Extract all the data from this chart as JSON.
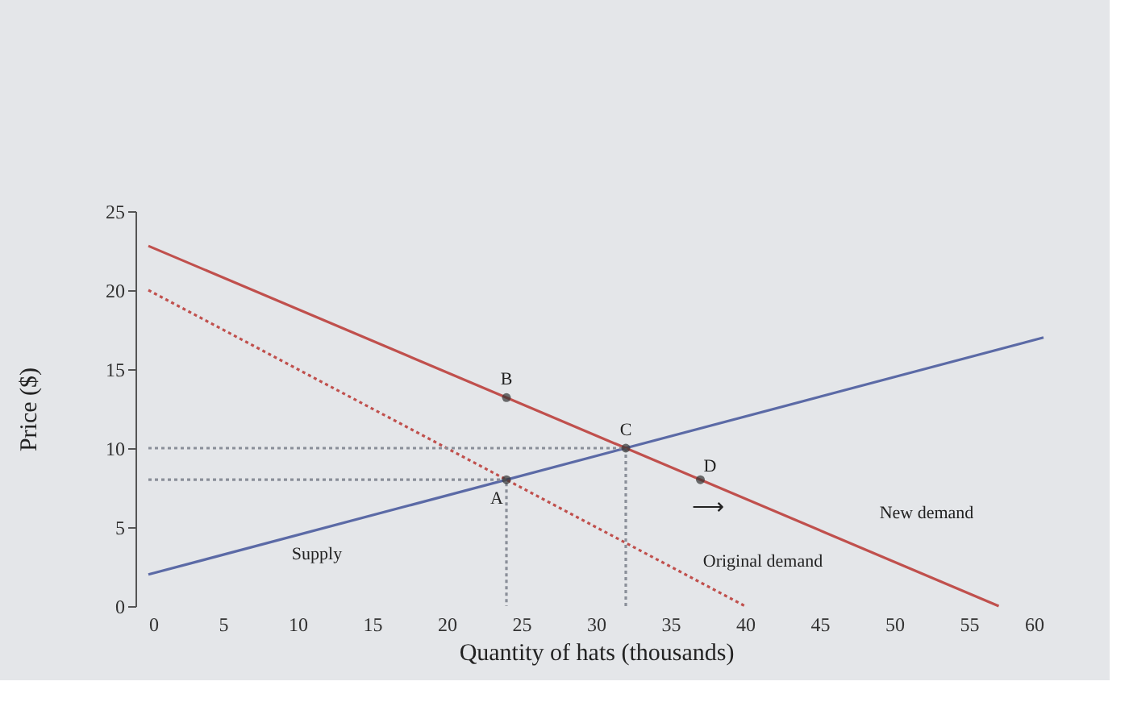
{
  "chart_data": {
    "type": "line",
    "xlabel": "Quantity of hats (thousands)",
    "ylabel": "Price ($)",
    "xlim": [
      0,
      60
    ],
    "xticks": [
      0,
      5,
      10,
      15,
      20,
      25,
      30,
      35,
      40,
      45,
      50,
      55,
      60
    ],
    "ylim": [
      0,
      25
    ],
    "yticks": [
      0,
      5,
      10,
      15,
      20,
      25
    ],
    "grid": false,
    "series": [
      {
        "color": "#5b6aa6",
        "x": [
          0,
          60
        ],
        "values": [
          2,
          17
        ],
        "line_style": "solid",
        "marker": "none"
      },
      {
        "color": "#c0504d",
        "x": [
          0,
          40
        ],
        "values": [
          20,
          0
        ],
        "line_style": "dotted",
        "marker": "none"
      },
      {
        "color": "#c0504d",
        "x": [
          0,
          57
        ],
        "values": [
          22.8,
          0
        ],
        "line_style": "solid",
        "marker": "none"
      },
      {
        "color": "#8a8f99",
        "x": [
          0,
          32,
          32
        ],
        "values": [
          10,
          10,
          0
        ],
        "line_style": "dotted",
        "marker": "none"
      },
      {
        "color": "#8a8f99",
        "x": [
          0,
          24,
          24
        ],
        "values": [
          8,
          8,
          0
        ],
        "line_style": "dotted",
        "marker": "none"
      },
      {
        "type": "scatter",
        "color": "#333333",
        "x": [
          24,
          24,
          32,
          37
        ],
        "values": [
          8,
          13.2,
          10,
          8
        ],
        "marker": "circle"
      }
    ],
    "annotations": [
      {
        "text": "A",
        "x": 24,
        "y": 8
      },
      {
        "text": "B",
        "x": 24,
        "y": 13.2
      },
      {
        "text": "C",
        "x": 32,
        "y": 10
      },
      {
        "text": "D",
        "x": 37,
        "y": 8
      },
      {
        "text": "Supply",
        "x": 14,
        "y": 5.5
      },
      "⟶",
      {
        "text": "Original demand",
        "x": 36,
        "y": 2
      },
      {
        "text": "New demand",
        "x": 50,
        "y": 2.8
      }
    ]
  }
}
